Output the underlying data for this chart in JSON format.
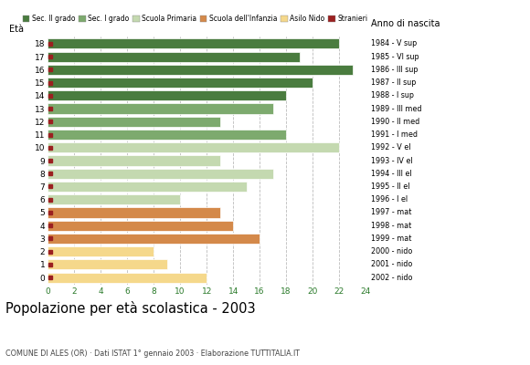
{
  "ages": [
    18,
    17,
    16,
    15,
    14,
    13,
    12,
    11,
    10,
    9,
    8,
    7,
    6,
    5,
    4,
    3,
    2,
    1,
    0
  ],
  "values": [
    22,
    19,
    23,
    20,
    18,
    17,
    13,
    18,
    22,
    13,
    17,
    15,
    10,
    13,
    14,
    16,
    8,
    9,
    12
  ],
  "categories": {
    "Sec. II grado": {
      "ages": [
        18,
        17,
        16,
        15,
        14
      ],
      "color": "#4a7c3f"
    },
    "Sec. I grado": {
      "ages": [
        13,
        12,
        11
      ],
      "color": "#7daa6e"
    },
    "Scuola Primaria": {
      "ages": [
        10,
        9,
        8,
        7,
        6
      ],
      "color": "#c4d9b0"
    },
    "Scuola dell'Infanzia": {
      "ages": [
        5,
        4,
        3
      ],
      "color": "#d4894a"
    },
    "Asilo Nido": {
      "ages": [
        2,
        1,
        0
      ],
      "color": "#f5d88b"
    }
  },
  "right_labels_by_age": {
    "18": "1984 - V sup",
    "17": "1985 - VI sup",
    "16": "1986 - III sup",
    "15": "1987 - II sup",
    "14": "1988 - I sup",
    "13": "1989 - III med",
    "12": "1990 - II med",
    "11": "1991 - I med",
    "10": "1992 - V el",
    "9": "1993 - IV el",
    "8": "1994 - III el",
    "7": "1995 - II el",
    "6": "1996 - I el",
    "5": "1997 - mat",
    "4": "1998 - mat",
    "3": "1999 - mat",
    "2": "2000 - nido",
    "1": "2001 - nido",
    "0": "2002 - nido"
  },
  "stranger_color": "#9b2020",
  "legend_items": [
    "Sec. II grado",
    "Sec. I grado",
    "Scuola Primaria",
    "Scuola dell'Infanzia",
    "Asilo Nido",
    "Stranieri"
  ],
  "legend_colors": [
    "#4a7c3f",
    "#7daa6e",
    "#c4d9b0",
    "#d4894a",
    "#f5d88b",
    "#9b2020"
  ],
  "title": "Popolazione per età scolastica - 2003",
  "subtitle": "COMUNE DI ALES (OR) · Dati ISTAT 1° gennaio 2003 · Elaborazione TUTTITALIA.IT",
  "label_eta": "Età",
  "label_anno": "Anno di nascita",
  "xlim": [
    0,
    24
  ],
  "xticks": [
    0,
    2,
    4,
    6,
    8,
    10,
    12,
    14,
    16,
    18,
    20,
    22,
    24
  ],
  "bg_color": "#ffffff",
  "grid_color": "#bbbbbb",
  "bar_height": 0.78
}
